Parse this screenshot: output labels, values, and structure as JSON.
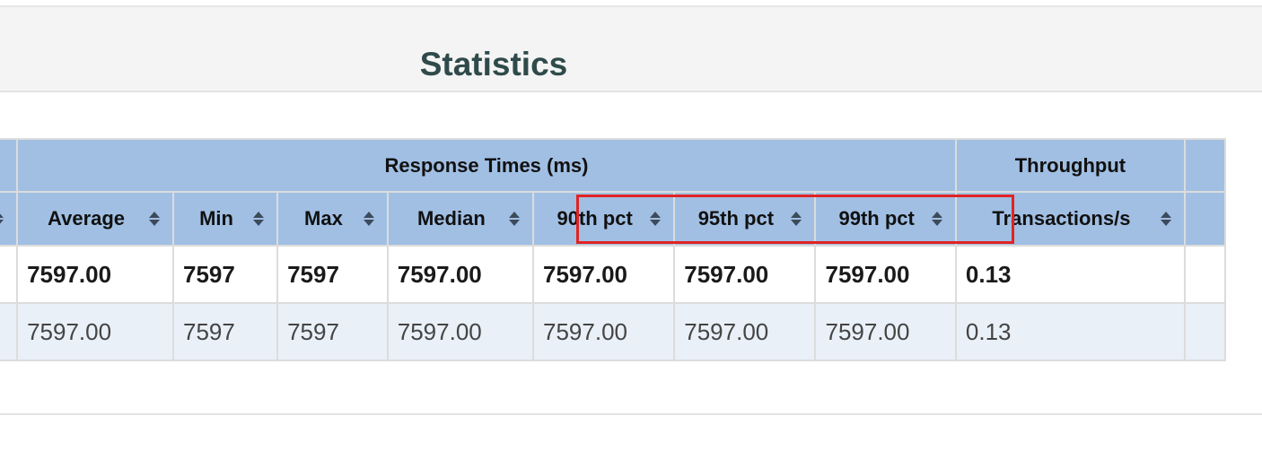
{
  "panel": {
    "title": "Statistics"
  },
  "groups": {
    "response_times": "Response Times (ms)",
    "throughput": "Throughput"
  },
  "columns": {
    "average": "Average",
    "min": "Min",
    "max": "Max",
    "median": "Median",
    "pct90": "90th pct",
    "pct95": "95th pct",
    "pct99": "99th pct",
    "tps": "Transactions/s"
  },
  "total_row": {
    "average": "7597.00",
    "min": "7597",
    "max": "7597",
    "median": "7597.00",
    "pct90": "7597.00",
    "pct95": "7597.00",
    "pct99": "7597.00",
    "tps": "0.13"
  },
  "rows": [
    {
      "average": "7597.00",
      "min": "7597",
      "max": "7597",
      "median": "7597.00",
      "pct90": "7597.00",
      "pct95": "7597.00",
      "pct99": "7597.00",
      "tps": "0.13"
    }
  ],
  "colors": {
    "header_bg": "#a1bfe3",
    "stripe_bg": "#e9f0f8",
    "title_color": "#2f4a4a",
    "highlight": "#e02424"
  },
  "icons": {
    "sort": "sort-icon"
  }
}
